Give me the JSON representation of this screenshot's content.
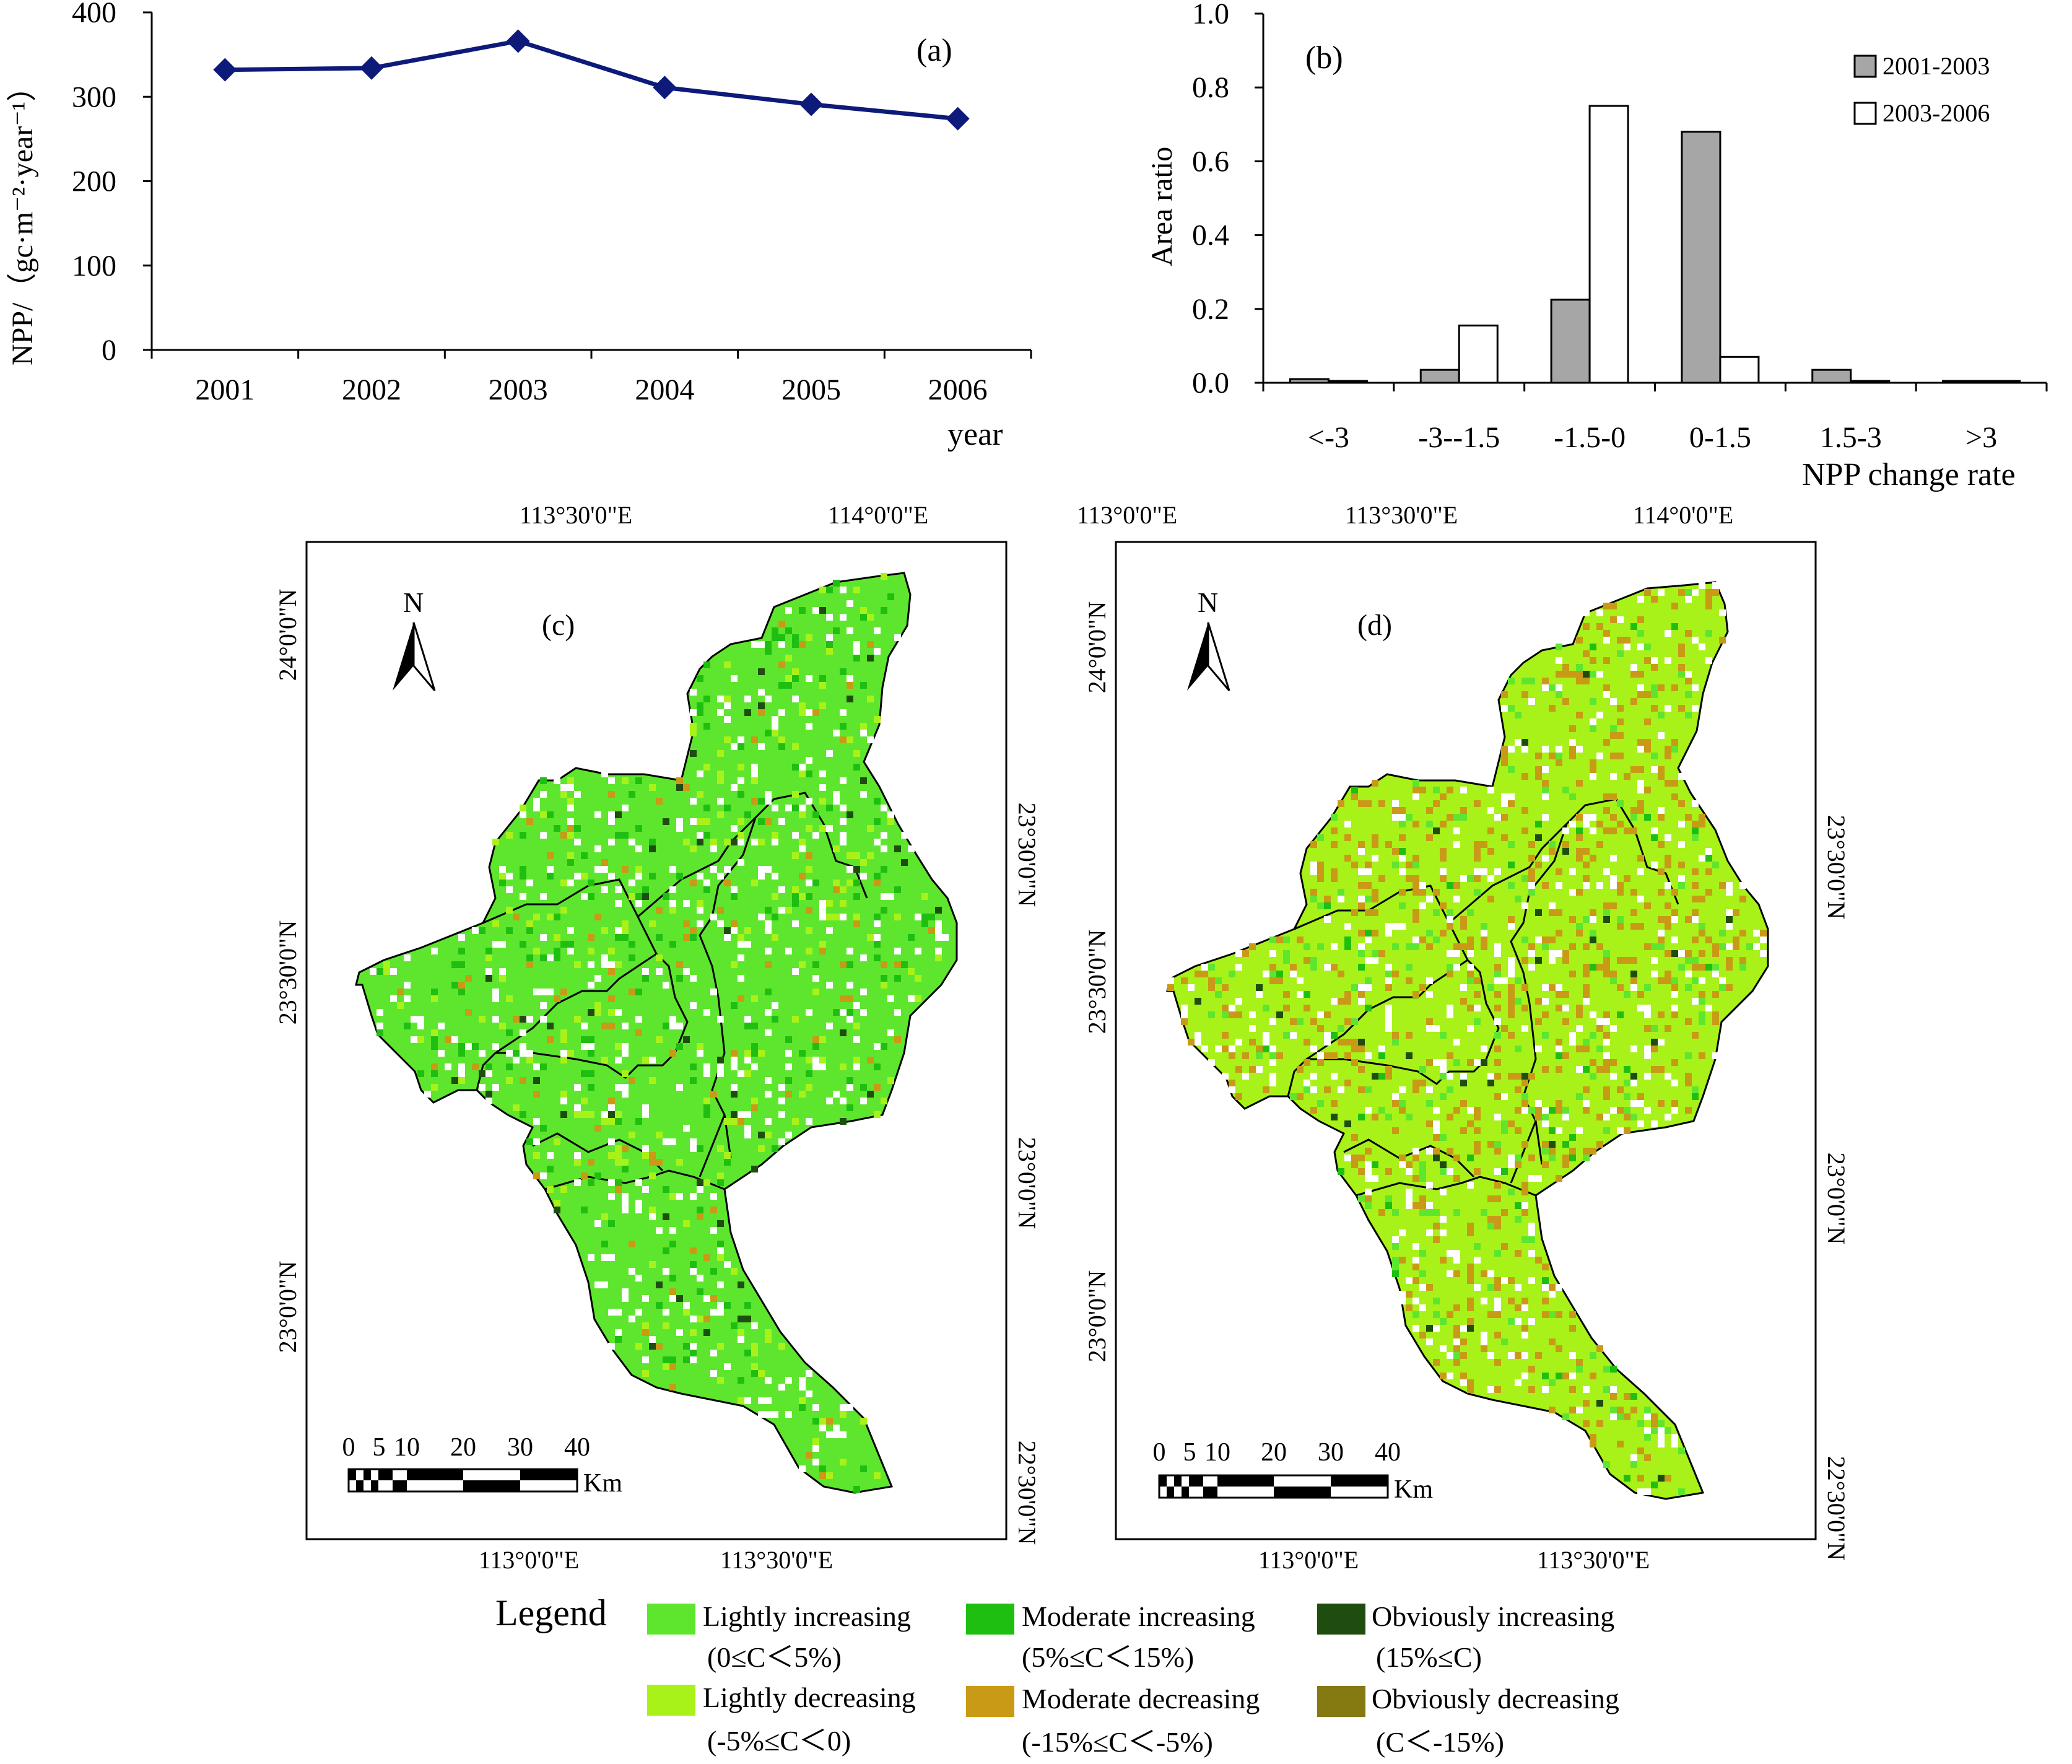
{
  "chart_data": [
    {
      "type": "line",
      "panel_label": "(a)",
      "x": [
        "2001",
        "2002",
        "2003",
        "2004",
        "2005",
        "2006"
      ],
      "values": [
        332,
        334,
        366,
        311,
        291,
        274
      ],
      "ylim": [
        0,
        400
      ],
      "yticks": [
        "0",
        "100",
        "200",
        "300",
        "400"
      ],
      "xlabel": "year",
      "ylabel": "NPP/（gc·m⁻²·year⁻¹）",
      "color": "#0d1a7a"
    },
    {
      "type": "bar",
      "panel_label": "(b)",
      "categories": [
        "<-3",
        "-3--1.5",
        "-1.5-0",
        "0-1.5",
        "1.5-3",
        ">3"
      ],
      "series": [
        {
          "name": "2001-2003",
          "values": [
            0.01,
            0.035,
            0.225,
            0.68,
            0.035,
            0.005
          ],
          "color": "#a6a6a6"
        },
        {
          "name": "2003-2006",
          "values": [
            0.005,
            0.155,
            0.75,
            0.07,
            0.005,
            0.005
          ],
          "color": "#ffffff"
        }
      ],
      "ylim": [
        0,
        1.0
      ],
      "yticks": [
        "0.0",
        "0.2",
        "0.4",
        "0.6",
        "0.8",
        "1.0"
      ],
      "xlabel": "NPP change rate",
      "ylabel": "Area ratio",
      "legend_position": "top-right"
    }
  ],
  "maps": {
    "c": {
      "panel_label": "(c)",
      "top_ticks": [
        "113°30'0\"E",
        "114°0'0\"E"
      ],
      "bottom_ticks": [
        "113°0'0\"E",
        "113°30'0\"E"
      ],
      "left_ticks": [
        "24°0'0\"N",
        "23°30'0\"N",
        "23°0'0\"N"
      ],
      "right_ticks": [
        "23°30'0\"N",
        "23°0'0\"N",
        "22°30'0\"N"
      ],
      "north": "N",
      "scale_ticks": [
        "0",
        "5",
        "10",
        "20",
        "30",
        "40"
      ],
      "scale_unit": "Km"
    },
    "d": {
      "panel_label": "(d)",
      "top_ticks": [
        "113°0'0\"E",
        "113°30'0\"E",
        "114°0'0\"E"
      ],
      "bottom_ticks": [
        "113°0'0\"E",
        "113°30'0\"E"
      ],
      "left_ticks": [
        "24°0'0\"N",
        "23°30'0\"N",
        "23°0'0\"N"
      ],
      "right_ticks": [
        "23°30'0\"N",
        "23°0'0\"N",
        "22°30'0\"N"
      ],
      "north": "N",
      "scale_ticks": [
        "0",
        "5",
        "10",
        "20",
        "30",
        "40"
      ],
      "scale_unit": "Km"
    }
  },
  "legend": {
    "title": "Legend",
    "items": [
      {
        "label": "Lightly increasing",
        "range": "(0≤C＜5%)",
        "color": "#5ee62e"
      },
      {
        "label": "Moderate increasing",
        "range": "(5%≤C＜15%)",
        "color": "#1fbf12"
      },
      {
        "label": "Obviously increasing",
        "range": "(15%≤C)",
        "color": "#1f4d0f"
      },
      {
        "label": "Lightly decreasing",
        "range": "(-5%≤C＜0)",
        "color": "#a8f21a"
      },
      {
        "label": "Moderate decreasing",
        "range": "(-15%≤C＜-5%)",
        "color": "#c99a16"
      },
      {
        "label": "Obviously decreasing",
        "range": "(C＜-15%)",
        "color": "#857a12"
      }
    ]
  }
}
